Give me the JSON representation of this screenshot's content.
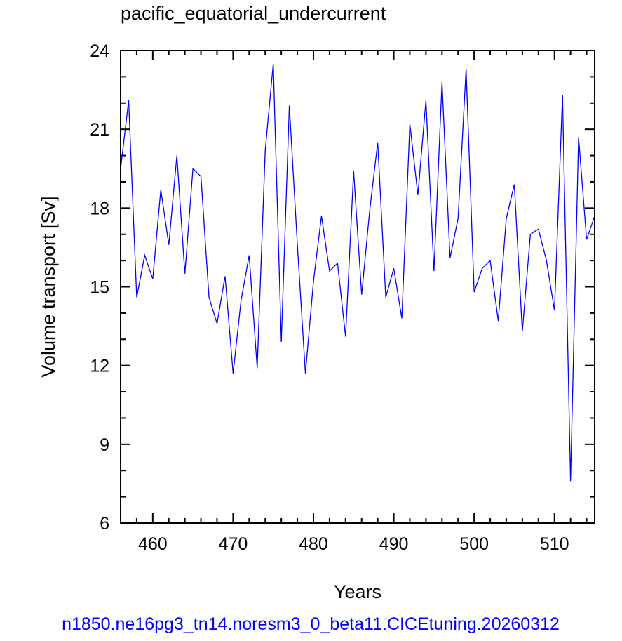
{
  "chart_data": {
    "type": "line",
    "title": "pacific_equatorial_undercurrent",
    "xlabel": "Years",
    "ylabel": "Volume transport [Sv]",
    "caption": "n1850.ne16pg3_tn14.noresm3_0_beta11.CICEtuning.20260312",
    "xlim": [
      456,
      515
    ],
    "ylim": [
      6,
      24
    ],
    "x_ticks": [
      460,
      470,
      480,
      490,
      500,
      510
    ],
    "x_tick_labels": [
      "460",
      "470",
      "480",
      "490",
      "500",
      "510"
    ],
    "y_ticks": [
      6,
      9,
      12,
      15,
      18,
      21,
      24
    ],
    "y_tick_labels": [
      "6",
      "9",
      "12",
      "15",
      "18",
      "21",
      "24"
    ],
    "grid": false,
    "series": [
      {
        "color": "#0000ff",
        "x": [
          456,
          457,
          458,
          459,
          460,
          461,
          462,
          463,
          464,
          465,
          466,
          467,
          468,
          469,
          470,
          471,
          472,
          473,
          474,
          475,
          476,
          477,
          478,
          479,
          480,
          481,
          482,
          483,
          484,
          485,
          486,
          487,
          488,
          489,
          490,
          491,
          492,
          493,
          494,
          495,
          496,
          497,
          498,
          499,
          500,
          501,
          502,
          503,
          504,
          505,
          506,
          507,
          508,
          509,
          510,
          511,
          512,
          513,
          514,
          515
        ],
        "y": [
          19.5,
          22.1,
          14.6,
          16.2,
          15.3,
          18.7,
          16.6,
          20.0,
          15.5,
          19.5,
          19.2,
          14.6,
          13.6,
          15.4,
          11.7,
          14.5,
          16.2,
          11.9,
          20.2,
          23.5,
          12.9,
          21.9,
          16.6,
          11.7,
          15.2,
          17.7,
          15.6,
          15.9,
          13.1,
          19.4,
          14.7,
          17.9,
          20.5,
          14.6,
          15.7,
          13.8,
          21.2,
          18.5,
          22.1,
          15.6,
          22.8,
          16.1,
          17.6,
          23.3,
          14.8,
          15.7,
          16.0,
          13.7,
          17.6,
          18.9,
          13.3,
          17.0,
          17.2,
          16.0,
          14.1,
          22.3,
          7.6,
          20.7,
          16.8,
          17.7
        ]
      }
    ]
  }
}
